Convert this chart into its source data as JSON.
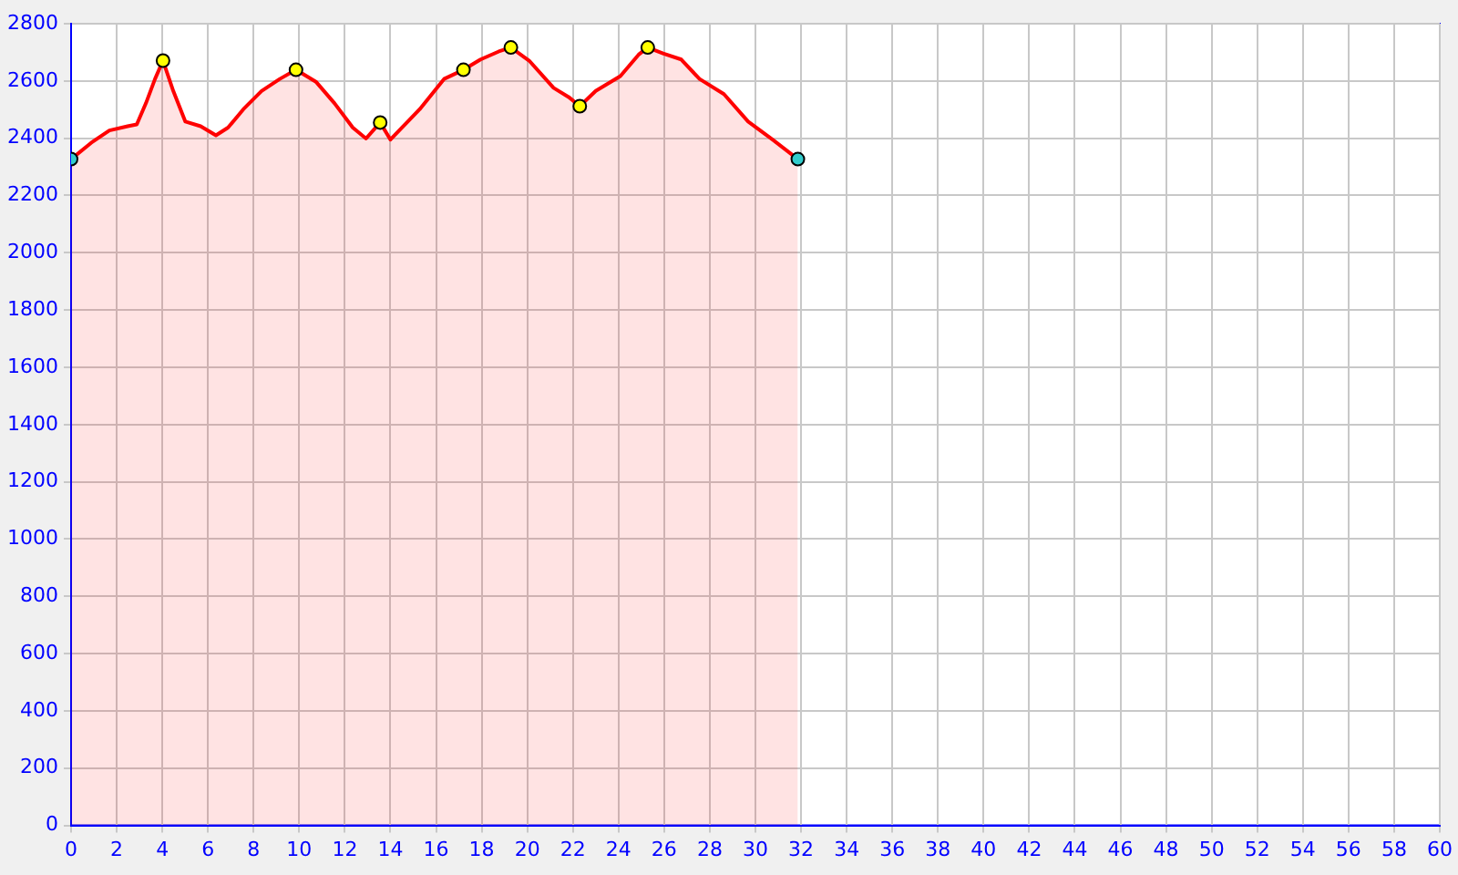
{
  "chart_data": {
    "type": "area",
    "xlim": [
      0,
      60
    ],
    "ylim": [
      0,
      2800
    ],
    "xticks": [
      0,
      2,
      4,
      6,
      8,
      10,
      12,
      14,
      16,
      18,
      20,
      22,
      24,
      26,
      28,
      30,
      32,
      34,
      36,
      38,
      40,
      42,
      44,
      46,
      48,
      50,
      52,
      54,
      56,
      58,
      60
    ],
    "yticks": [
      0,
      200,
      400,
      600,
      800,
      1000,
      1200,
      1400,
      1600,
      1800,
      2000,
      2200,
      2400,
      2600,
      2800
    ],
    "grid": true,
    "legend": false,
    "series": [
      {
        "color": "#ff0000",
        "marker": "none",
        "x": [
          0,
          0.88,
          1.68,
          2.48,
          2.88,
          3.28,
          3.68,
          4.03,
          4.48,
          5.01,
          5.68,
          6.35,
          6.88,
          7.55,
          8.35,
          9.15,
          9.86,
          10.75,
          11.55,
          12.35,
          12.93,
          13.55,
          14.0,
          15.28,
          16.35,
          17.2,
          17.95,
          18.75,
          19.28,
          20.08,
          21.15,
          21.81,
          22.3,
          23.0,
          24.08,
          24.88,
          25.28,
          25.95,
          26.75,
          27.55,
          28.62,
          29.68,
          30.75,
          31.86
        ],
        "values": [
          2327,
          2384,
          2427,
          2442,
          2448,
          2522,
          2607,
          2671,
          2565,
          2458,
          2442,
          2410,
          2437,
          2501,
          2565,
          2607,
          2639,
          2596,
          2522,
          2437,
          2399,
          2455,
          2395,
          2501,
          2607,
          2639,
          2675,
          2703,
          2717,
          2671,
          2576,
          2544,
          2512,
          2565,
          2617,
          2692,
          2717,
          2696,
          2675,
          2607,
          2554,
          2458,
          2395,
          2327
        ]
      },
      {
        "type": "scatter",
        "marker": "circle",
        "x": [
          0,
          4.03,
          9.86,
          13.55,
          17.2,
          19.28,
          22.3,
          25.28,
          31.86
        ],
        "values": [
          2327,
          2671,
          2639,
          2455,
          2639,
          2717,
          2512,
          2717,
          2327
        ],
        "colors": [
          "#33cccc",
          "#ffff00",
          "#ffff00",
          "#ffff00",
          "#ffff00",
          "#ffff00",
          "#ffff00",
          "#ffff00",
          "#33cccc"
        ]
      }
    ]
  }
}
